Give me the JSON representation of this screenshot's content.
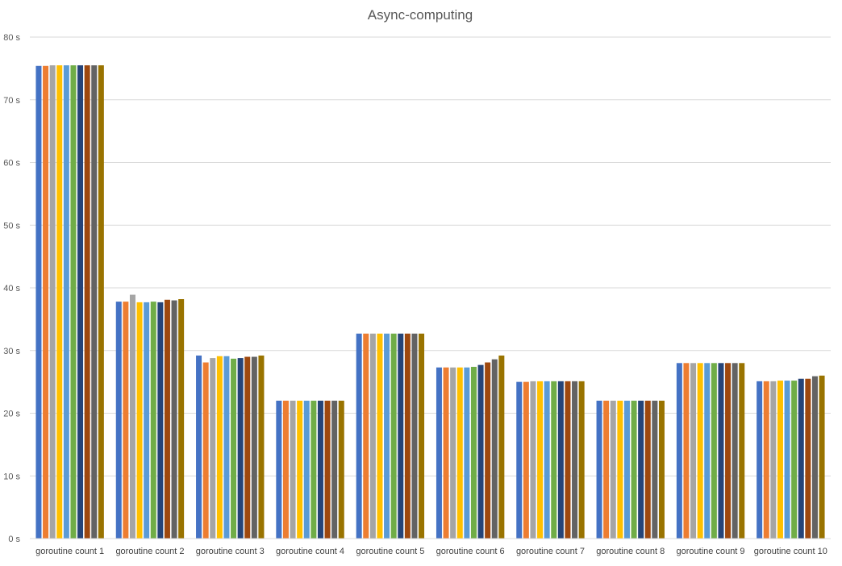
{
  "chart_data": {
    "type": "bar",
    "title": "Async-computing",
    "xlabel": "",
    "ylabel": "",
    "ylim": [
      0,
      80
    ],
    "y_ticks": [
      "0 s",
      "10 s",
      "20 s",
      "30 s",
      "40 s",
      "50 s",
      "60 s",
      "70 s",
      "80 s"
    ],
    "grid": true,
    "legend": "none",
    "categories": [
      "goroutine count 1",
      "goroutine count 2",
      "goroutine count 3",
      "goroutine count 4",
      "goroutine count 5",
      "goroutine count 6",
      "goroutine count 7",
      "goroutine count 8",
      "goroutine count 9",
      "goroutine count 10"
    ],
    "series": [
      {
        "color": "#4472c4",
        "values": [
          75.4,
          37.8,
          29.2,
          22.0,
          32.7,
          27.3,
          25.0,
          22.0,
          28.0,
          25.1
        ]
      },
      {
        "color": "#ed7d31",
        "values": [
          75.4,
          37.8,
          28.1,
          22.0,
          32.7,
          27.3,
          25.0,
          22.0,
          28.0,
          25.1
        ]
      },
      {
        "color": "#a5a5a5",
        "values": [
          75.5,
          38.9,
          28.8,
          22.0,
          32.7,
          27.3,
          25.1,
          22.0,
          28.0,
          25.1
        ]
      },
      {
        "color": "#ffc000",
        "values": [
          75.5,
          37.7,
          29.1,
          22.0,
          32.7,
          27.3,
          25.1,
          22.0,
          28.0,
          25.2
        ]
      },
      {
        "color": "#5b9bd5",
        "values": [
          75.5,
          37.7,
          29.1,
          22.0,
          32.7,
          27.3,
          25.1,
          22.0,
          28.0,
          25.2
        ]
      },
      {
        "color": "#70ad47",
        "values": [
          75.5,
          37.8,
          28.7,
          22.0,
          32.7,
          27.4,
          25.1,
          22.0,
          28.0,
          25.2
        ]
      },
      {
        "color": "#264478",
        "values": [
          75.5,
          37.7,
          28.8,
          22.0,
          32.7,
          27.7,
          25.1,
          22.0,
          28.0,
          25.5
        ]
      },
      {
        "color": "#9e480e",
        "values": [
          75.5,
          38.1,
          29.0,
          22.0,
          32.7,
          28.1,
          25.1,
          22.0,
          28.0,
          25.5
        ]
      },
      {
        "color": "#636363",
        "values": [
          75.5,
          38.0,
          29.0,
          22.0,
          32.7,
          28.6,
          25.1,
          22.0,
          28.0,
          25.9
        ]
      },
      {
        "color": "#997300",
        "values": [
          75.5,
          38.2,
          29.2,
          22.0,
          32.7,
          29.2,
          25.1,
          22.0,
          28.0,
          26.0
        ]
      }
    ]
  }
}
